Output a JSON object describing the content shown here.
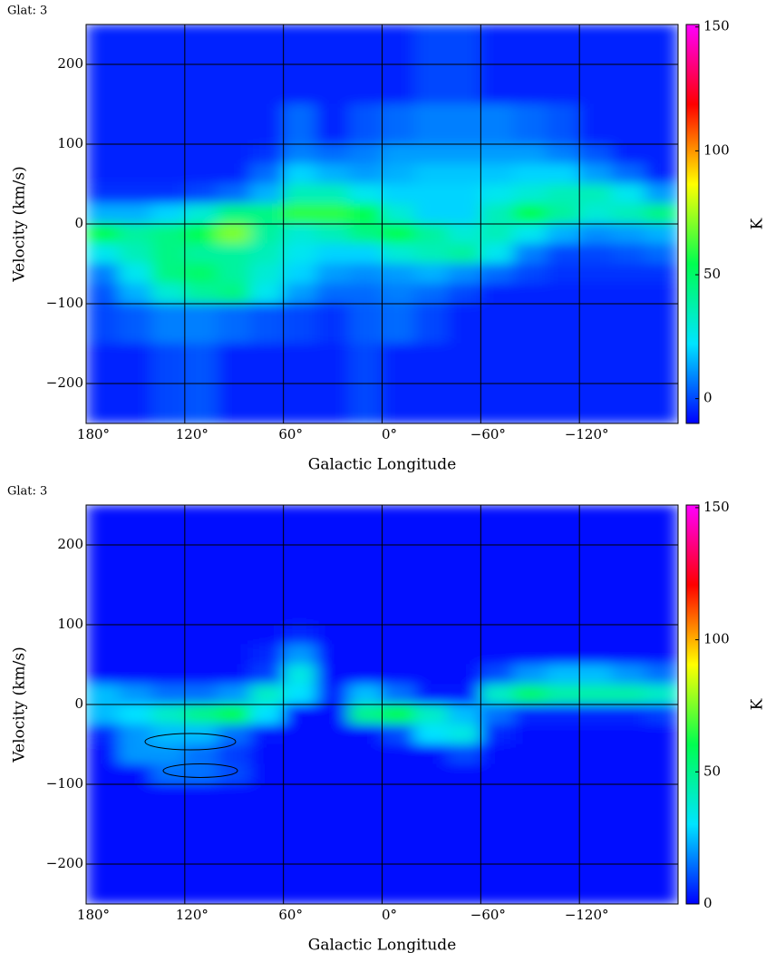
{
  "chart_data": [
    {
      "type": "heatmap",
      "title": "Glat: 3",
      "x_label": "Galactic Longitude",
      "y_label": "Velocity (km/s)",
      "colorbar_label": "K",
      "xlim": [
        180,
        -180
      ],
      "ylim": [
        -250,
        250
      ],
      "zlim": [
        -10,
        151
      ],
      "grid": true,
      "xticks": [
        {
          "value": 180,
          "label": "180°"
        },
        {
          "value": 120,
          "label": "120°"
        },
        {
          "value": 60,
          "label": "60°"
        },
        {
          "value": 0,
          "label": "0°"
        },
        {
          "value": -60,
          "label": "−60°"
        },
        {
          "value": -120,
          "label": "−120°"
        }
      ],
      "yticks": [
        {
          "value": -200,
          "label": "−200"
        },
        {
          "value": -100,
          "label": "−100"
        },
        0,
        100,
        200
      ],
      "zticks": [
        0,
        50,
        100,
        150
      ],
      "colormap": [
        "#0000ff",
        "#00e4ff",
        "#00ff50",
        "#ffff00",
        "#ff0000",
        "#ff00ff"
      ],
      "xbins": [
        180,
        160,
        140,
        120,
        100,
        80,
        60,
        40,
        20,
        0,
        -20,
        -40,
        -60,
        -80,
        -100,
        -120,
        -140,
        -160,
        -180
      ],
      "ybins": [
        250,
        150,
        100,
        75,
        50,
        25,
        0,
        -25,
        -50,
        -75,
        -100,
        -150,
        -250
      ],
      "z": [
        [
          -5,
          -5,
          -5,
          -5,
          -5,
          -5,
          -5,
          -5,
          -5,
          -5,
          0,
          0,
          -5,
          -5,
          -5,
          -5,
          -5,
          -5
        ],
        [
          -5,
          -5,
          -5,
          -5,
          -5,
          -5,
          5,
          -5,
          2,
          5,
          8,
          8,
          8,
          5,
          2,
          -5,
          -5,
          -5
        ],
        [
          -5,
          -5,
          -5,
          -5,
          -5,
          -3,
          8,
          5,
          8,
          12,
          12,
          12,
          12,
          12,
          8,
          2,
          -5,
          -5
        ],
        [
          -5,
          -5,
          -5,
          -5,
          -5,
          5,
          20,
          15,
          12,
          15,
          18,
          18,
          18,
          20,
          20,
          12,
          5,
          -5
        ],
        [
          -3,
          -3,
          -3,
          0,
          5,
          15,
          35,
          35,
          25,
          20,
          20,
          20,
          25,
          30,
          35,
          35,
          25,
          12
        ],
        [
          15,
          15,
          20,
          30,
          45,
          45,
          60,
          60,
          55,
          30,
          20,
          20,
          35,
          55,
          40,
          30,
          35,
          45
        ],
        [
          55,
          40,
          45,
          55,
          70,
          40,
          30,
          35,
          45,
          55,
          40,
          30,
          35,
          25,
          15,
          10,
          12,
          15
        ],
        [
          25,
          35,
          45,
          40,
          40,
          35,
          25,
          20,
          20,
          30,
          35,
          40,
          25,
          8,
          0,
          0,
          2,
          5
        ],
        [
          8,
          25,
          45,
          50,
          40,
          30,
          20,
          12,
          10,
          12,
          15,
          10,
          5,
          0,
          -3,
          -3,
          -3,
          -3
        ],
        [
          2,
          15,
          30,
          40,
          45,
          25,
          12,
          5,
          5,
          8,
          5,
          0,
          -5,
          -5,
          -5,
          -5,
          -5,
          -5
        ],
        [
          0,
          3,
          8,
          8,
          5,
          2,
          0,
          -3,
          3,
          5,
          0,
          -5,
          -5,
          -5,
          -5,
          -5,
          -5,
          -5
        ],
        [
          -5,
          -5,
          0,
          2,
          -5,
          -5,
          -5,
          -5,
          0,
          -5,
          -5,
          -5,
          -5,
          -5,
          -5,
          -5,
          -5,
          -5
        ]
      ]
    },
    {
      "type": "heatmap",
      "title": "Glat: 3",
      "x_label": "Galactic Longitude",
      "y_label": "Velocity (km/s)",
      "colorbar_label": "K",
      "xlim": [
        180,
        -180
      ],
      "ylim": [
        -250,
        250
      ],
      "zlim": [
        0,
        151
      ],
      "grid": true,
      "xticks": [
        {
          "value": 180,
          "label": "180°"
        },
        {
          "value": 120,
          "label": "120°"
        },
        {
          "value": 60,
          "label": "60°"
        },
        {
          "value": 0,
          "label": "0°"
        },
        {
          "value": -60,
          "label": "−60°"
        },
        {
          "value": -120,
          "label": "−120°"
        }
      ],
      "yticks": [
        {
          "value": -200,
          "label": "−200"
        },
        {
          "value": -100,
          "label": "−100"
        },
        0,
        100,
        200
      ],
      "zticks": [
        0,
        50,
        100,
        150
      ],
      "colormap": [
        "#0000ff",
        "#00e4ff",
        "#00ff50",
        "#ffff00",
        "#ff0000",
        "#ff00ff"
      ],
      "xbins": [
        180,
        160,
        140,
        120,
        100,
        80,
        60,
        40,
        20,
        0,
        -20,
        -40,
        -60,
        -80,
        -100,
        -120,
        -140,
        -160,
        -180
      ],
      "ybins": [
        250,
        150,
        100,
        75,
        50,
        25,
        0,
        -25,
        -50,
        -75,
        -100,
        -150,
        -250
      ],
      "z": [
        [
          2,
          2,
          2,
          2,
          2,
          2,
          2,
          2,
          2,
          2,
          2,
          2,
          2,
          2,
          2,
          2,
          2,
          2
        ],
        [
          2,
          2,
          2,
          2,
          2,
          2,
          2,
          2,
          2,
          2,
          2,
          2,
          2,
          2,
          2,
          2,
          2,
          2
        ],
        [
          2,
          2,
          2,
          2,
          2,
          2,
          5,
          2,
          2,
          2,
          2,
          2,
          2,
          2,
          2,
          2,
          2,
          2
        ],
        [
          2,
          2,
          2,
          2,
          2,
          5,
          20,
          2,
          2,
          2,
          2,
          2,
          2,
          2,
          2,
          2,
          2,
          2
        ],
        [
          2,
          2,
          2,
          2,
          2,
          8,
          35,
          2,
          2,
          2,
          2,
          2,
          10,
          20,
          25,
          25,
          20,
          15
        ],
        [
          25,
          20,
          15,
          15,
          20,
          40,
          30,
          5,
          25,
          15,
          3,
          3,
          40,
          55,
          45,
          45,
          45,
          40
        ],
        [
          25,
          30,
          40,
          50,
          60,
          30,
          2,
          2,
          50,
          60,
          40,
          25,
          15,
          5,
          5,
          5,
          5,
          8
        ],
        [
          5,
          20,
          25,
          25,
          15,
          3,
          2,
          2,
          2,
          10,
          30,
          35,
          5,
          2,
          2,
          2,
          2,
          2
        ],
        [
          2,
          20,
          20,
          15,
          8,
          2,
          2,
          2,
          2,
          2,
          2,
          10,
          2,
          2,
          2,
          2,
          2,
          2
        ],
        [
          2,
          2,
          15,
          15,
          10,
          2,
          2,
          2,
          2,
          2,
          2,
          2,
          2,
          2,
          2,
          2,
          2,
          2
        ],
        [
          2,
          2,
          2,
          2,
          2,
          2,
          2,
          2,
          2,
          2,
          2,
          2,
          2,
          2,
          2,
          2,
          2,
          2
        ],
        [
          2,
          2,
          2,
          2,
          2,
          2,
          2,
          2,
          2,
          2,
          2,
          2,
          2,
          2,
          2,
          2,
          2,
          2
        ]
      ]
    }
  ]
}
